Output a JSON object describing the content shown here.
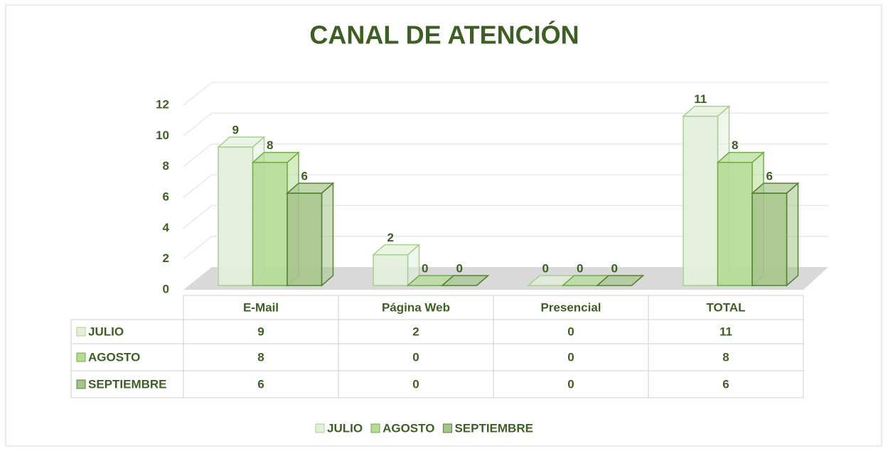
{
  "chart_data": {
    "type": "bar3d",
    "title": "CANAL DE ATENCIÓN",
    "categories": [
      "E-Mail",
      "Página Web",
      "Presencial",
      "TOTAL"
    ],
    "series": [
      {
        "name": "JULIO",
        "color": "#e2efda",
        "stroke": "#a9d08e",
        "values": [
          9,
          2,
          0,
          11
        ]
      },
      {
        "name": "AGOSTO",
        "color": "#b4dc95",
        "stroke": "#70ad47",
        "values": [
          8,
          0,
          0,
          8
        ]
      },
      {
        "name": "SEPTIEMBRE",
        "color": "#a5c48a",
        "stroke": "#548235",
        "values": [
          6,
          0,
          0,
          6
        ]
      }
    ],
    "ylim": [
      0,
      12
    ],
    "yticks": [
      0,
      2,
      4,
      6,
      8,
      10,
      12
    ],
    "grid": true,
    "legend": "bottom"
  }
}
